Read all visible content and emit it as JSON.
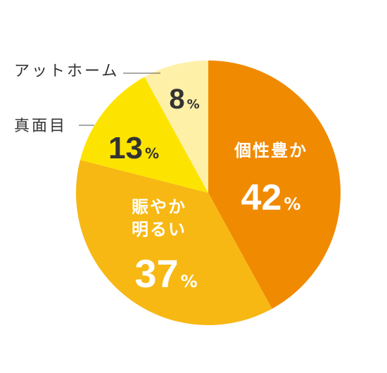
{
  "chart_data": {
    "type": "pie",
    "unit": "%",
    "slices": [
      {
        "label_lines": [
          "個性豊か"
        ],
        "value": 42,
        "color": "#f08a00"
      },
      {
        "label_lines": [
          "賑やか",
          "明るい"
        ],
        "value": 37,
        "color": "#f7b813"
      },
      {
        "label_lines": [
          "真面目"
        ],
        "value": 13,
        "color": "#fde400"
      },
      {
        "label_lines": [
          "アットホーム"
        ],
        "value": 8,
        "color": "#fff0a8"
      }
    ],
    "start": "top",
    "direction": "clockwise"
  }
}
